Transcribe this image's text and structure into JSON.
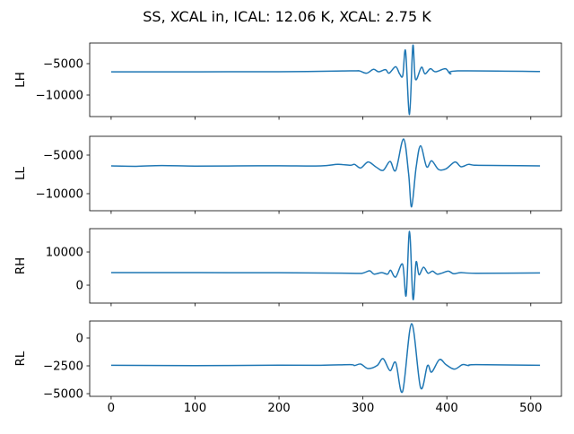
{
  "chart_data": {
    "type": "line",
    "title": "SS, XCAL in, ICAL: 12.06 K, XCAL: 2.75 K",
    "line_color": "#1f77b4",
    "xlim": [
      -25.55,
      536.55
    ],
    "xticks": [
      0,
      100,
      200,
      300,
      400,
      500
    ],
    "xtick_labels": [
      "0",
      "100",
      "200",
      "300",
      "400",
      "500"
    ],
    "panels": [
      {
        "ylabel": "LH",
        "ylim": [
          -13430,
          -1714
        ],
        "yticks": [
          -5000,
          -10000
        ],
        "ytick_labels": [
          "−5000",
          "−10000"
        ],
        "x": [
          0,
          200,
          284.8,
          295.5,
          304.4,
          312.6,
          318.7,
          326.9,
          331.2,
          339.0,
          343.7,
          347.5,
          350.8,
          355.5,
          359.5,
          362.6,
          369.7,
          374.0,
          380.4,
          386.5,
          398.3,
          404.4,
          413.3,
          511
        ],
        "y": [
          -6300,
          -6280,
          -6150,
          -6150,
          -6520,
          -5900,
          -6290,
          -5950,
          -6520,
          -5480,
          -6620,
          -6900,
          -2960,
          -13100,
          -2140,
          -7480,
          -5570,
          -6620,
          -5810,
          -6290,
          -5810,
          -6620,
          -6150,
          -6250
        ]
      },
      {
        "ylabel": "LL",
        "ylim": [
          -12210,
          -2560
        ],
        "yticks": [
          -5000,
          -10000
        ],
        "ytick_labels": [
          "−5000",
          "−10000"
        ],
        "x": [
          0,
          30,
          60,
          100,
          150,
          200,
          250,
          270,
          284.8,
          290.1,
          297.3,
          306.2,
          315.2,
          324.1,
          332.3,
          339.1,
          348.4,
          354.4,
          358.0,
          363.4,
          368.7,
          375.9,
          381.9,
          390.1,
          399.0,
          409.7,
          416.9,
          425.8,
          434.7,
          470,
          511
        ],
        "y": [
          -6400,
          -6450,
          -6350,
          -6420,
          -6400,
          -6380,
          -6400,
          -6200,
          -6317,
          -6200,
          -6667,
          -5890,
          -6510,
          -6977,
          -5814,
          -6977,
          -2907,
          -7364,
          -11707,
          -6590,
          -3802,
          -6510,
          -5736,
          -6860,
          -6783,
          -5890,
          -6510,
          -6200,
          -6317,
          -6350,
          -6400
        ]
      },
      {
        "ylabel": "RH",
        "ylim": [
          -5400,
          17030
        ],
        "yticks": [
          10000,
          0
        ],
        "ytick_labels": [
          "10000",
          "0"
        ],
        "x": [
          0,
          200,
          284.8,
          299.1,
          308.0,
          313.3,
          322.3,
          329.4,
          333.0,
          339.0,
          347.3,
          351.5,
          355.5,
          359.7,
          363.3,
          366.8,
          372.2,
          377.6,
          382.9,
          388.3,
          393.6,
          401.8,
          407.9,
          416.8,
          434.7,
          511
        ],
        "y": [
          3800,
          3750,
          3600,
          3600,
          4320,
          3330,
          3780,
          3330,
          4500,
          2430,
          6300,
          -3150,
          16200,
          -4230,
          6940,
          3150,
          5400,
          3600,
          4230,
          3330,
          3600,
          4230,
          3450,
          3780,
          3600,
          3700
        ]
      },
      {
        "ylabel": "RL",
        "ylim": [
          -5240,
          1530
        ],
        "yticks": [
          0,
          -2500,
          -5000
        ],
        "ytick_labels": [
          "0",
          "−2500",
          "−5000"
        ],
        "x": [
          0,
          100,
          200,
          250,
          284.8,
          290.1,
          297.3,
          306.2,
          316.9,
          324.1,
          332.3,
          339.1,
          347.3,
          358.0,
          368.7,
          376.9,
          381.9,
          391.2,
          399.0,
          409.0,
          418.7,
          425.8,
          434.7,
          511
        ],
        "y": [
          -2450,
          -2480,
          -2440,
          -2450,
          -2392,
          -2473,
          -2339,
          -2742,
          -2473,
          -1855,
          -2930,
          -2204,
          -4812,
          1290,
          -4462,
          -2473,
          -3065,
          -1935,
          -2392,
          -2796,
          -2392,
          -2473,
          -2392,
          -2450
        ]
      }
    ]
  }
}
